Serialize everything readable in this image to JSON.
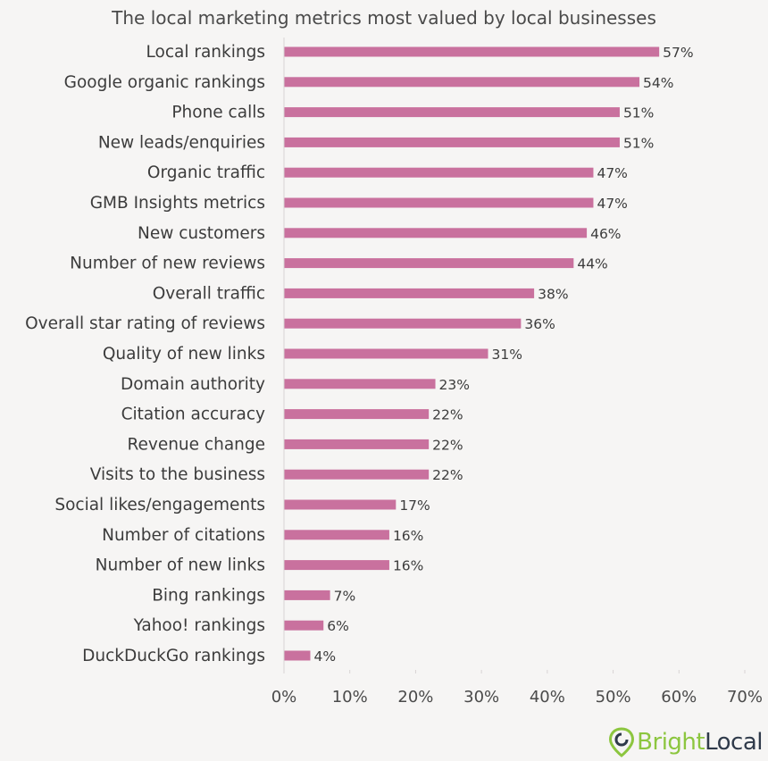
{
  "chart_data": {
    "type": "bar",
    "orientation": "horizontal",
    "title": "The local marketing metrics most valued by local businesses",
    "categories": [
      "Local rankings",
      "Google organic rankings",
      "Phone calls",
      "New leads/enquiries",
      "Organic traffic",
      "GMB Insights metrics",
      "New customers",
      "Number of new reviews",
      "Overall traffic",
      "Overall star rating of reviews",
      "Quality of new links",
      "Domain authority",
      "Citation accuracy",
      "Revenue change",
      "Visits to the business",
      "Social likes/engagements",
      "Number of citations",
      "Number of new links",
      "Bing rankings",
      "Yahoo! rankings",
      "DuckDuckGo rankings"
    ],
    "values": [
      57,
      54,
      51,
      51,
      47,
      47,
      46,
      44,
      38,
      36,
      31,
      23,
      22,
      22,
      22,
      17,
      16,
      16,
      7,
      6,
      4
    ],
    "value_labels": [
      "57%",
      "54%",
      "51%",
      "51%",
      "47%",
      "47%",
      "46%",
      "44%",
      "38%",
      "36%",
      "31%",
      "23%",
      "22%",
      "22%",
      "22%",
      "17%",
      "16%",
      "16%",
      "7%",
      "6%",
      "4%"
    ],
    "xlim": [
      0,
      70
    ],
    "x_ticks": [
      "0%",
      "10%",
      "20%",
      "30%",
      "40%",
      "50%",
      "60%",
      "70%"
    ],
    "x_tick_values": [
      0,
      10,
      20,
      30,
      40,
      50,
      60,
      70
    ],
    "grid": false,
    "bar_color": "#c9719e",
    "axis_color": "#d8d4d4"
  },
  "logo": {
    "name": "BrightLocal",
    "text_a": "Bright",
    "text_b": "Local",
    "pin_color": "#8cc63f",
    "text_color": "#2f3a4a"
  }
}
